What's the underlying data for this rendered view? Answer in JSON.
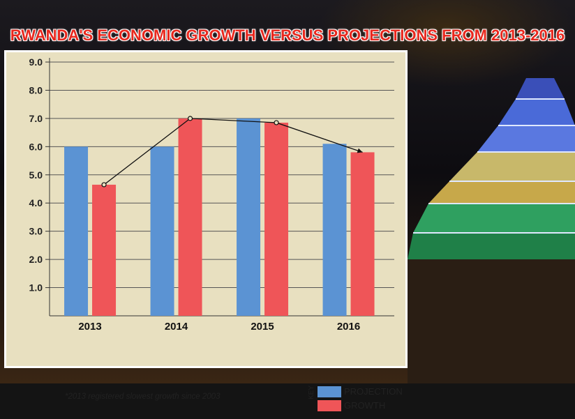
{
  "colors": {
    "projection": "#5b93d3",
    "growth": "#ef5558",
    "panel": "#e8e0c0",
    "title": "#e8281e"
  },
  "footnote": "*2013 registered slowest growth since 2003",
  "legend": {
    "key_label": "KEY",
    "projection_label": "PROJECTION",
    "growth_label": "GROWTH"
  },
  "chart_data": {
    "type": "bar",
    "title": "RWANDA'S ECONOMIC GROWTH VERSUS PROJECTIONS FROM 2013-2016",
    "categories": [
      "2013",
      "2014",
      "2015",
      "2016"
    ],
    "series": [
      {
        "name": "PROJECTION",
        "values": [
          6.0,
          6.0,
          7.0,
          6.1
        ]
      },
      {
        "name": "GROWTH",
        "values": [
          4.65,
          7.0,
          6.85,
          5.8
        ]
      }
    ],
    "trend_line": {
      "series": "GROWTH"
    },
    "yticks": [
      "1.0",
      "2.0",
      "3.0",
      "4.0",
      "5.0",
      "6.0",
      "7.0",
      "8.0",
      "9.0"
    ],
    "ylim": [
      0,
      9.0
    ],
    "grid": true,
    "legend_position": "bottom-right"
  }
}
